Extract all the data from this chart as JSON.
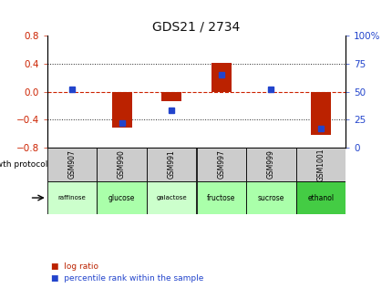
{
  "title": "GDS21 / 2734",
  "samples": [
    "GSM907",
    "GSM990",
    "GSM991",
    "GSM997",
    "GSM999",
    "GSM1001"
  ],
  "conditions": [
    "raffinose",
    "glucose",
    "galactose",
    "fructose",
    "sucrose",
    "ethanol"
  ],
  "log_ratio": [
    0.0,
    -0.52,
    -0.13,
    0.41,
    0.0,
    -0.62
  ],
  "percentile_rank": [
    52,
    22,
    33,
    65,
    52,
    17
  ],
  "left_ylim": [
    -0.8,
    0.8
  ],
  "right_ylim": [
    0,
    100
  ],
  "left_yticks": [
    -0.8,
    -0.4,
    0.0,
    0.4,
    0.8
  ],
  "right_yticks": [
    0,
    25,
    50,
    75,
    100
  ],
  "right_yticklabels": [
    "0",
    "25",
    "50",
    "75",
    "100%"
  ],
  "bar_color": "#bb2200",
  "dot_color": "#2244cc",
  "zero_line_color": "#cc2200",
  "grid_color": "#222222",
  "condition_colors": [
    "#ccffcc",
    "#aaffaa",
    "#ccffcc",
    "#aaffaa",
    "#aaffaa",
    "#44cc44"
  ],
  "gsm_bg": "#cccccc",
  "title_color": "#111111",
  "left_tick_color": "#cc2200",
  "right_tick_color": "#2244cc",
  "bar_width": 0.4
}
